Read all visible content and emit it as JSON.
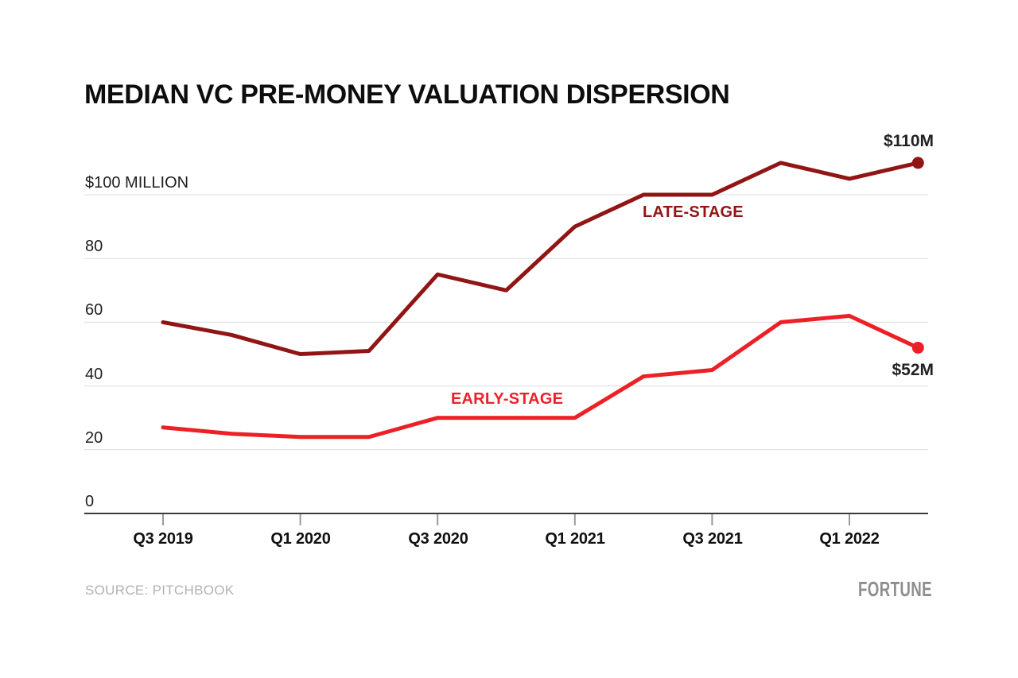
{
  "title": "MEDIAN VC PRE-MONEY VALUATION DISPERSION",
  "footer": {
    "source": "SOURCE: PITCHBOOK",
    "brand": "FORTUNE"
  },
  "chart_data": {
    "type": "line",
    "title": "MEDIAN VC PRE-MONEY VALUATION DISPERSION",
    "categories": [
      "Q3 2019",
      "Q4 2019",
      "Q1 2020",
      "Q2 2020",
      "Q3 2020",
      "Q4 2020",
      "Q1 2021",
      "Q2 2021",
      "Q3 2021",
      "Q4 2021",
      "Q1 2022",
      "Q2 2022"
    ],
    "x_tick_labels": [
      "Q3 2019",
      "Q1 2020",
      "Q3 2020",
      "Q1 2021",
      "Q3 2021",
      "Q1 2022"
    ],
    "y_tick_labels": [
      "$100 MILLION",
      "80",
      "60",
      "40",
      "20",
      "0"
    ],
    "y_tick_values": [
      100,
      80,
      60,
      40,
      20,
      0
    ],
    "ylim": [
      0,
      115
    ],
    "xlabel": "",
    "ylabel": "$ millions",
    "grid": "horizontal",
    "legend_position": "inline-labels",
    "grid_color": "#dcdcdc",
    "axis_color": "#3a3a3a",
    "tick_color": "#9a9a9a",
    "series": [
      {
        "name": "LATE-STAGE",
        "color": "#911514",
        "values": [
          60,
          56,
          50,
          51,
          75,
          70,
          90,
          100,
          100,
          110,
          105,
          110
        ],
        "end_label": "$110M",
        "end_value": 110
      },
      {
        "name": "EARLY-STAGE",
        "color": "#EC2127",
        "values": [
          27,
          25,
          24,
          24,
          30,
          30,
          30,
          43,
          45,
          60,
          62,
          52
        ],
        "end_label": "$52M",
        "end_value": 52
      }
    ]
  }
}
